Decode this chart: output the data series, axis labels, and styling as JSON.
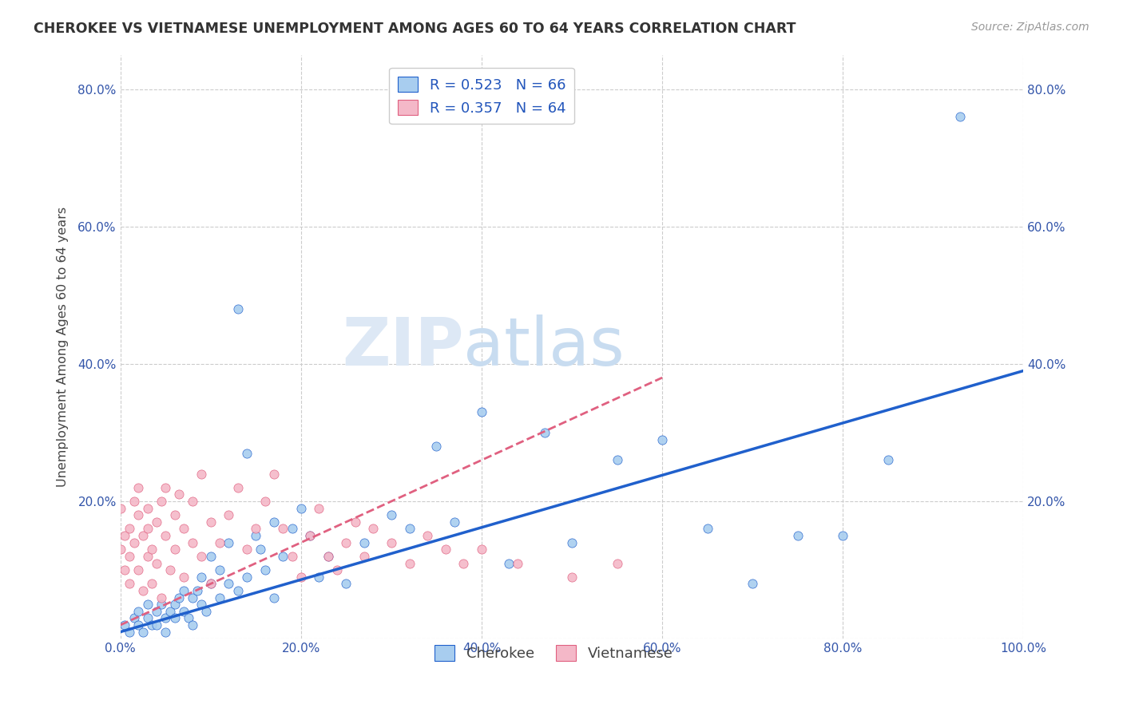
{
  "title": "CHEROKEE VS VIETNAMESE UNEMPLOYMENT AMONG AGES 60 TO 64 YEARS CORRELATION CHART",
  "source": "Source: ZipAtlas.com",
  "ylabel": "Unemployment Among Ages 60 to 64 years",
  "xlim": [
    0.0,
    1.0
  ],
  "ylim": [
    0.0,
    0.85
  ],
  "x_ticks": [
    0.0,
    0.2,
    0.4,
    0.6,
    0.8,
    1.0
  ],
  "x_tick_labels": [
    "0.0%",
    "20.0%",
    "40.0%",
    "60.0%",
    "80.0%",
    "100.0%"
  ],
  "y_ticks": [
    0.0,
    0.2,
    0.4,
    0.6,
    0.8
  ],
  "y_tick_labels": [
    "",
    "20.0%",
    "40.0%",
    "60.0%",
    "80.0%"
  ],
  "cherokee_color": "#A8CDEF",
  "vietnamese_color": "#F4B8C8",
  "cherokee_line_color": "#2060CC",
  "vietnamese_line_color": "#E06080",
  "legend_r_cherokee": "R = 0.523",
  "legend_n_cherokee": "N = 66",
  "legend_r_vietnamese": "R = 0.357",
  "legend_n_vietnamese": "N = 64",
  "cherokee_x": [
    0.005,
    0.01,
    0.015,
    0.02,
    0.02,
    0.025,
    0.03,
    0.03,
    0.035,
    0.04,
    0.04,
    0.045,
    0.05,
    0.05,
    0.055,
    0.06,
    0.06,
    0.065,
    0.07,
    0.07,
    0.075,
    0.08,
    0.08,
    0.085,
    0.09,
    0.09,
    0.095,
    0.1,
    0.1,
    0.11,
    0.11,
    0.12,
    0.12,
    0.13,
    0.13,
    0.14,
    0.14,
    0.15,
    0.155,
    0.16,
    0.17,
    0.17,
    0.18,
    0.19,
    0.2,
    0.21,
    0.22,
    0.23,
    0.25,
    0.27,
    0.3,
    0.32,
    0.35,
    0.37,
    0.4,
    0.43,
    0.47,
    0.5,
    0.55,
    0.6,
    0.65,
    0.7,
    0.75,
    0.8,
    0.85,
    0.93
  ],
  "cherokee_y": [
    0.02,
    0.01,
    0.03,
    0.02,
    0.04,
    0.01,
    0.03,
    0.05,
    0.02,
    0.04,
    0.02,
    0.05,
    0.03,
    0.01,
    0.04,
    0.05,
    0.03,
    0.06,
    0.04,
    0.07,
    0.03,
    0.06,
    0.02,
    0.07,
    0.05,
    0.09,
    0.04,
    0.08,
    0.12,
    0.06,
    0.1,
    0.08,
    0.14,
    0.07,
    0.48,
    0.09,
    0.27,
    0.15,
    0.13,
    0.1,
    0.17,
    0.06,
    0.12,
    0.16,
    0.19,
    0.15,
    0.09,
    0.12,
    0.08,
    0.14,
    0.18,
    0.16,
    0.28,
    0.17,
    0.33,
    0.11,
    0.3,
    0.14,
    0.26,
    0.29,
    0.16,
    0.08,
    0.15,
    0.15,
    0.26,
    0.76
  ],
  "vietnamese_x": [
    0.0,
    0.0,
    0.005,
    0.005,
    0.01,
    0.01,
    0.01,
    0.015,
    0.015,
    0.02,
    0.02,
    0.02,
    0.025,
    0.025,
    0.03,
    0.03,
    0.03,
    0.035,
    0.035,
    0.04,
    0.04,
    0.045,
    0.045,
    0.05,
    0.05,
    0.055,
    0.06,
    0.06,
    0.065,
    0.07,
    0.07,
    0.08,
    0.08,
    0.09,
    0.09,
    0.1,
    0.1,
    0.11,
    0.12,
    0.13,
    0.14,
    0.15,
    0.16,
    0.17,
    0.18,
    0.19,
    0.2,
    0.21,
    0.22,
    0.23,
    0.24,
    0.25,
    0.26,
    0.27,
    0.28,
    0.3,
    0.32,
    0.34,
    0.36,
    0.38,
    0.4,
    0.44,
    0.5,
    0.55
  ],
  "vietnamese_y": [
    0.19,
    0.13,
    0.15,
    0.1,
    0.16,
    0.12,
    0.08,
    0.2,
    0.14,
    0.18,
    0.22,
    0.1,
    0.15,
    0.07,
    0.16,
    0.12,
    0.19,
    0.13,
    0.08,
    0.17,
    0.11,
    0.2,
    0.06,
    0.22,
    0.15,
    0.1,
    0.18,
    0.13,
    0.21,
    0.16,
    0.09,
    0.14,
    0.2,
    0.12,
    0.24,
    0.17,
    0.08,
    0.14,
    0.18,
    0.22,
    0.13,
    0.16,
    0.2,
    0.24,
    0.16,
    0.12,
    0.09,
    0.15,
    0.19,
    0.12,
    0.1,
    0.14,
    0.17,
    0.12,
    0.16,
    0.14,
    0.11,
    0.15,
    0.13,
    0.11,
    0.13,
    0.11,
    0.09,
    0.11
  ],
  "watermark_zip": "ZIP",
  "watermark_atlas": "atlas",
  "background_color": "#FFFFFF",
  "grid_color": "#CCCCCC"
}
